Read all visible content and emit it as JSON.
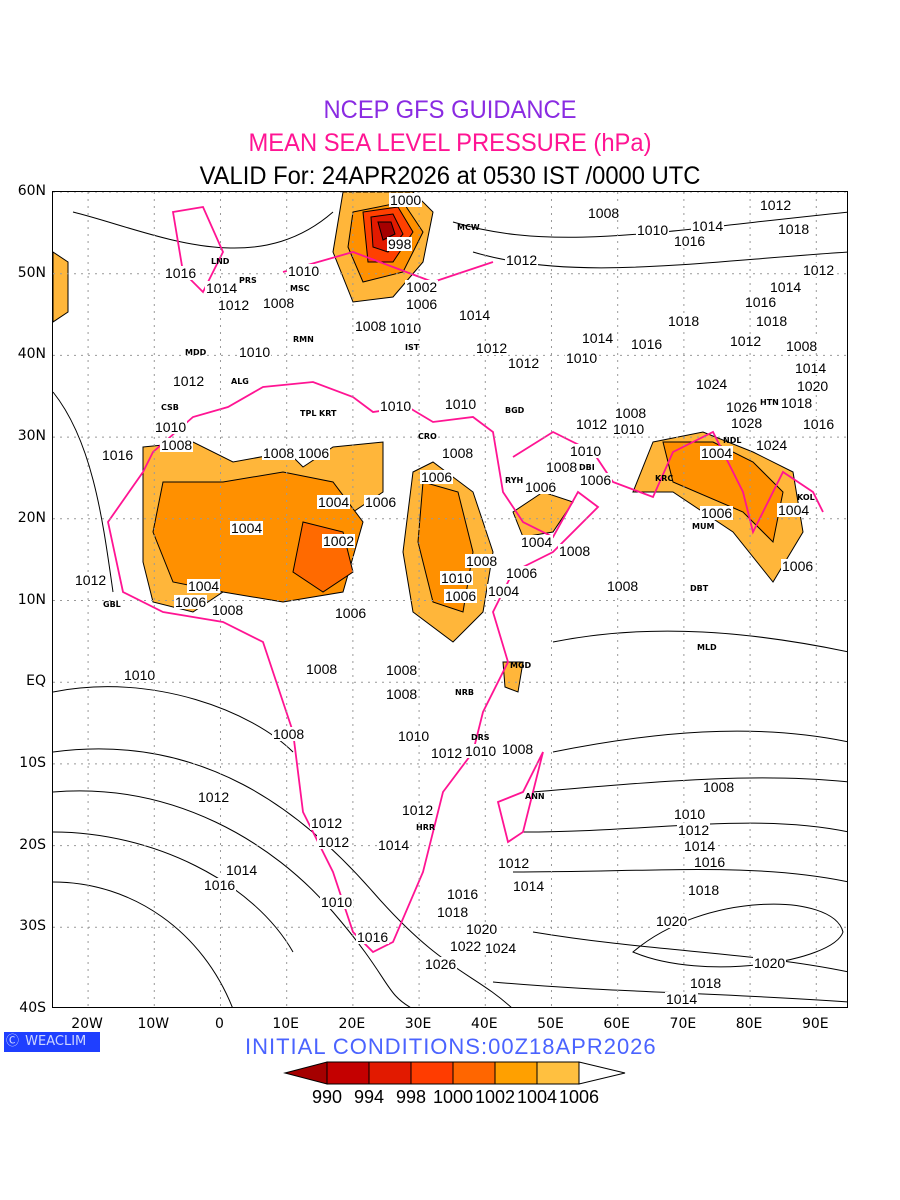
{
  "title": {
    "line1": "NCEP GFS GUIDANCE",
    "line2": "MEAN SEA LEVEL PRESSURE (hPa)",
    "line3": "VALID For: 24APR2026 at 0530 IST /0000 UTC"
  },
  "colors": {
    "line1": "#8a2be2",
    "line2": "#ff1493",
    "coast": "#ff1493",
    "init": "#4a63ff",
    "logo_bg": "#1f3fff"
  },
  "axes": {
    "lat_labels": [
      {
        "t": "60N",
        "v": 60
      },
      {
        "t": "50N",
        "v": 50
      },
      {
        "t": "40N",
        "v": 40
      },
      {
        "t": "30N",
        "v": 30
      },
      {
        "t": "20N",
        "v": 20
      },
      {
        "t": "10N",
        "v": 10
      },
      {
        "t": "EQ",
        "v": 0
      },
      {
        "t": "10S",
        "v": -10
      },
      {
        "t": "20S",
        "v": -20
      },
      {
        "t": "30S",
        "v": -30
      },
      {
        "t": "40S",
        "v": -40
      }
    ],
    "lon_labels": [
      {
        "t": "20W",
        "v": -20
      },
      {
        "t": "10W",
        "v": -10
      },
      {
        "t": "0",
        "v": 0
      },
      {
        "t": "10E",
        "v": 10
      },
      {
        "t": "20E",
        "v": 20
      },
      {
        "t": "30E",
        "v": 30
      },
      {
        "t": "40E",
        "v": 40
      },
      {
        "t": "50E",
        "v": 50
      },
      {
        "t": "60E",
        "v": 60
      },
      {
        "t": "70E",
        "v": 70
      },
      {
        "t": "80E",
        "v": 80
      },
      {
        "t": "90E",
        "v": 90
      }
    ]
  },
  "contour_labels": [
    [
      "1000",
      28,
      59.1
    ],
    [
      "998",
      27,
      53.6
    ],
    [
      "1008",
      57.8,
      57.4
    ],
    [
      "1012",
      83.9,
      58.4
    ],
    [
      "1014",
      73.6,
      55.8
    ],
    [
      "1010",
      65.3,
      55.3
    ],
    [
      "1016",
      70.3,
      54
    ],
    [
      "1018",
      86.6,
      55.5
    ],
    [
      "1012",
      45.4,
      51.7
    ],
    [
      "1012",
      90.4,
      50.5
    ],
    [
      "1016",
      -6,
      50.1
    ],
    [
      "1010",
      12.6,
      50.3
    ],
    [
      "1014",
      0.1,
      48.2
    ],
    [
      "1012",
      1.9,
      46.7
    ],
    [
      "1008",
      8.8,
      46.4
    ],
    [
      "1002",
      30.3,
      48.4
    ],
    [
      "1006",
      30.3,
      46.3
    ],
    [
      "1014",
      38.3,
      45
    ],
    [
      "1008",
      22.7,
      43.6
    ],
    [
      "1010",
      28,
      43.4
    ],
    [
      "1014",
      85.4,
      48.4
    ],
    [
      "1016",
      81.6,
      47
    ],
    [
      "1018",
      70,
      44.2
    ],
    [
      "1018",
      83.2,
      44.2
    ],
    [
      "1014",
      57,
      42.1
    ],
    [
      "1016",
      64.3,
      41.4
    ],
    [
      "1012",
      40.9,
      40.9
    ],
    [
      "1012",
      45.7,
      39.1
    ],
    [
      "1010",
      54.5,
      39.7
    ],
    [
      "1012",
      79.3,
      41.8
    ],
    [
      "1008",
      87.7,
      41.2
    ],
    [
      "1014",
      89.2,
      38.5
    ],
    [
      "1020",
      89.5,
      36.3
    ],
    [
      "1018",
      87,
      34.2
    ],
    [
      "1016",
      90.4,
      31.6
    ],
    [
      "1024",
      74.1,
      36.5
    ],
    [
      "1026",
      78.7,
      33.7
    ],
    [
      "1028",
      79.4,
      31.7
    ],
    [
      "1024",
      83.2,
      29
    ],
    [
      "1010",
      5.1,
      40.4
    ],
    [
      "1012",
      -4.9,
      36.9
    ],
    [
      "1010",
      26.5,
      33.8
    ],
    [
      "1010",
      36.3,
      34.1
    ],
    [
      "1008",
      62,
      32.9
    ],
    [
      "1012",
      56,
      31.6
    ],
    [
      "1010",
      60.5,
      31.5
    ],
    [
      "1010",
      55.2,
      28.3
    ],
    [
      "1008",
      51.5,
      26.8
    ],
    [
      "1006",
      56,
      24.7
    ],
    [
      "1006",
      48.4,
      23.9
    ],
    [
      "1004",
      74.9,
      28.1
    ],
    [
      "1010",
      -7.5,
      31.2
    ],
    [
      "1008",
      -6.7,
      30
    ],
    [
      "1016",
      -15.5,
      27.8
    ],
    [
      "1008",
      8.8,
      28
    ],
    [
      "1006",
      14,
      28
    ],
    [
      "1008",
      35.8,
      28
    ],
    [
      "1006",
      32.7,
      25.1
    ],
    [
      "1004",
      17.1,
      22.1
    ],
    [
      "1006",
      24.2,
      22.1
    ],
    [
      "1004",
      3.9,
      18.9
    ],
    [
      "1002",
      17.9,
      17.3
    ],
    [
      "1006",
      74.9,
      20.7
    ],
    [
      "1004",
      86.6,
      21.1
    ],
    [
      "1004",
      47.7,
      17.2
    ],
    [
      "1008",
      51.1,
      16.1
    ],
    [
      "1008",
      39.4,
      14.8
    ],
    [
      "1006",
      87.1,
      14.2
    ],
    [
      "1006",
      45.4,
      13.4
    ],
    [
      "1010",
      35.6,
      13.2
    ],
    [
      "1004",
      42.7,
      12.6
    ],
    [
      "1006",
      36.3,
      11.5
    ],
    [
      "1008",
      60.8,
      11.8
    ],
    [
      "1004",
      -2.5,
      11.8
    ],
    [
      "1006",
      -4.5,
      10.3
    ],
    [
      "1008",
      -0.2,
      8.8
    ],
    [
      "1006",
      19.7,
      8.5
    ],
    [
      "1012",
      -19.6,
      12.5
    ],
    [
      "1008",
      15.2,
      1.6
    ],
    [
      "1008",
      27.3,
      1.5
    ],
    [
      "1008",
      27.3,
      -1.4
    ],
    [
      "1010",
      -12.3,
      0.9
    ],
    [
      "1008",
      10.3,
      -6.3
    ],
    [
      "1010",
      29.1,
      -6.6
    ],
    [
      "1012",
      34.1,
      -8.7
    ],
    [
      "1010",
      38.6,
      -8.4
    ],
    [
      "1008",
      43.6,
      -8.2
    ],
    [
      "1008",
      75.3,
      -12.8
    ],
    [
      "1012",
      -1.1,
      -14
    ],
    [
      "1010",
      70.8,
      -16.1
    ],
    [
      "1012",
      71.4,
      -18.1
    ],
    [
      "1014",
      72.3,
      -20.1
    ],
    [
      "1016",
      73.8,
      -22
    ],
    [
      "1018",
      72.9,
      -25.4
    ],
    [
      "1012",
      29.8,
      -15.6
    ],
    [
      "1012",
      16,
      -17.2
    ],
    [
      "1012",
      17,
      -19.6
    ],
    [
      "1014",
      26.1,
      -19.9
    ],
    [
      "1012",
      44.2,
      -22.1
    ],
    [
      "1014",
      46.6,
      -24.9
    ],
    [
      "1014",
      3.1,
      -23
    ],
    [
      "1016",
      -0.2,
      -24.8
    ],
    [
      "1010",
      17.5,
      -26.9
    ],
    [
      "1016",
      36.6,
      -25.9
    ],
    [
      "1018",
      35.1,
      -27.1
    ],
    [
      "1020",
      39.4,
      -30.2
    ],
    [
      "1016",
      23,
      -31.2
    ],
    [
      "1022",
      37,
      -31.3
    ],
    [
      "1024",
      37.4,
      -32.5
    ],
    [
      "1026",
      33.3,
      -34
    ],
    [
      "1020",
      68.1,
      -29.2
    ],
    [
      "1020",
      82.9,
      -34.4
    ],
    [
      "1018",
      73.3,
      -36.8
    ],
    [
      "1014",
      69.6,
      -38.3
    ]
  ],
  "stations": [
    [
      "LND",
      -0.1,
      51.5
    ],
    [
      "PRS",
      3.5,
      49.2
    ],
    [
      "MSC",
      12,
      48.2
    ],
    [
      "MCW",
      37.5,
      55.7
    ],
    [
      "RMN",
      12.5,
      42
    ],
    [
      "MDD",
      -3.7,
      40.4
    ],
    [
      "ALG",
      3,
      36.8
    ],
    [
      "CSB",
      -7.6,
      33.6
    ],
    [
      "TPL",
      13.2,
      32.9
    ],
    [
      "KRT",
      15.5,
      32.9
    ],
    [
      "IST",
      29,
      41
    ],
    [
      "CRO",
      31.2,
      30.1
    ],
    [
      "BGD",
      44.4,
      33.3
    ],
    [
      "RYH",
      46.7,
      24.7
    ],
    [
      "DBI",
      55.3,
      25.3
    ],
    [
      "KRC",
      67,
      24.9
    ],
    [
      "NDL",
      77.2,
      28.6
    ],
    [
      "HTN",
      80.5,
      34.2
    ],
    [
      "KOL",
      88.4,
      22.6
    ],
    [
      "MUM",
      72.9,
      19.1
    ],
    [
      "DBT",
      72.3,
      11.5
    ],
    [
      "MLD",
      73.5,
      4.2
    ],
    [
      "GBL",
      -16.4,
      9.5
    ],
    [
      "NRB",
      36.8,
      -1.3
    ],
    [
      "DRS",
      39.3,
      -6.8
    ],
    [
      "MGD",
      45.3,
      2.1
    ],
    [
      "ANN",
      47.5,
      -14
    ],
    [
      "HRR",
      31,
      -17.8
    ]
  ],
  "logo": {
    "text": "WEACLIM"
  },
  "initial_conditions": "INITIAL  CONDITIONS:00Z18APR2026",
  "colorbar": {
    "labels": [
      "990",
      "994",
      "998",
      "1000",
      "1002",
      "1004",
      "1006"
    ],
    "colors": [
      "#a50000",
      "#c40000",
      "#e21a00",
      "#ff3c00",
      "#ff6600",
      "#ffa000",
      "#ffc040",
      "#ffffff"
    ]
  }
}
